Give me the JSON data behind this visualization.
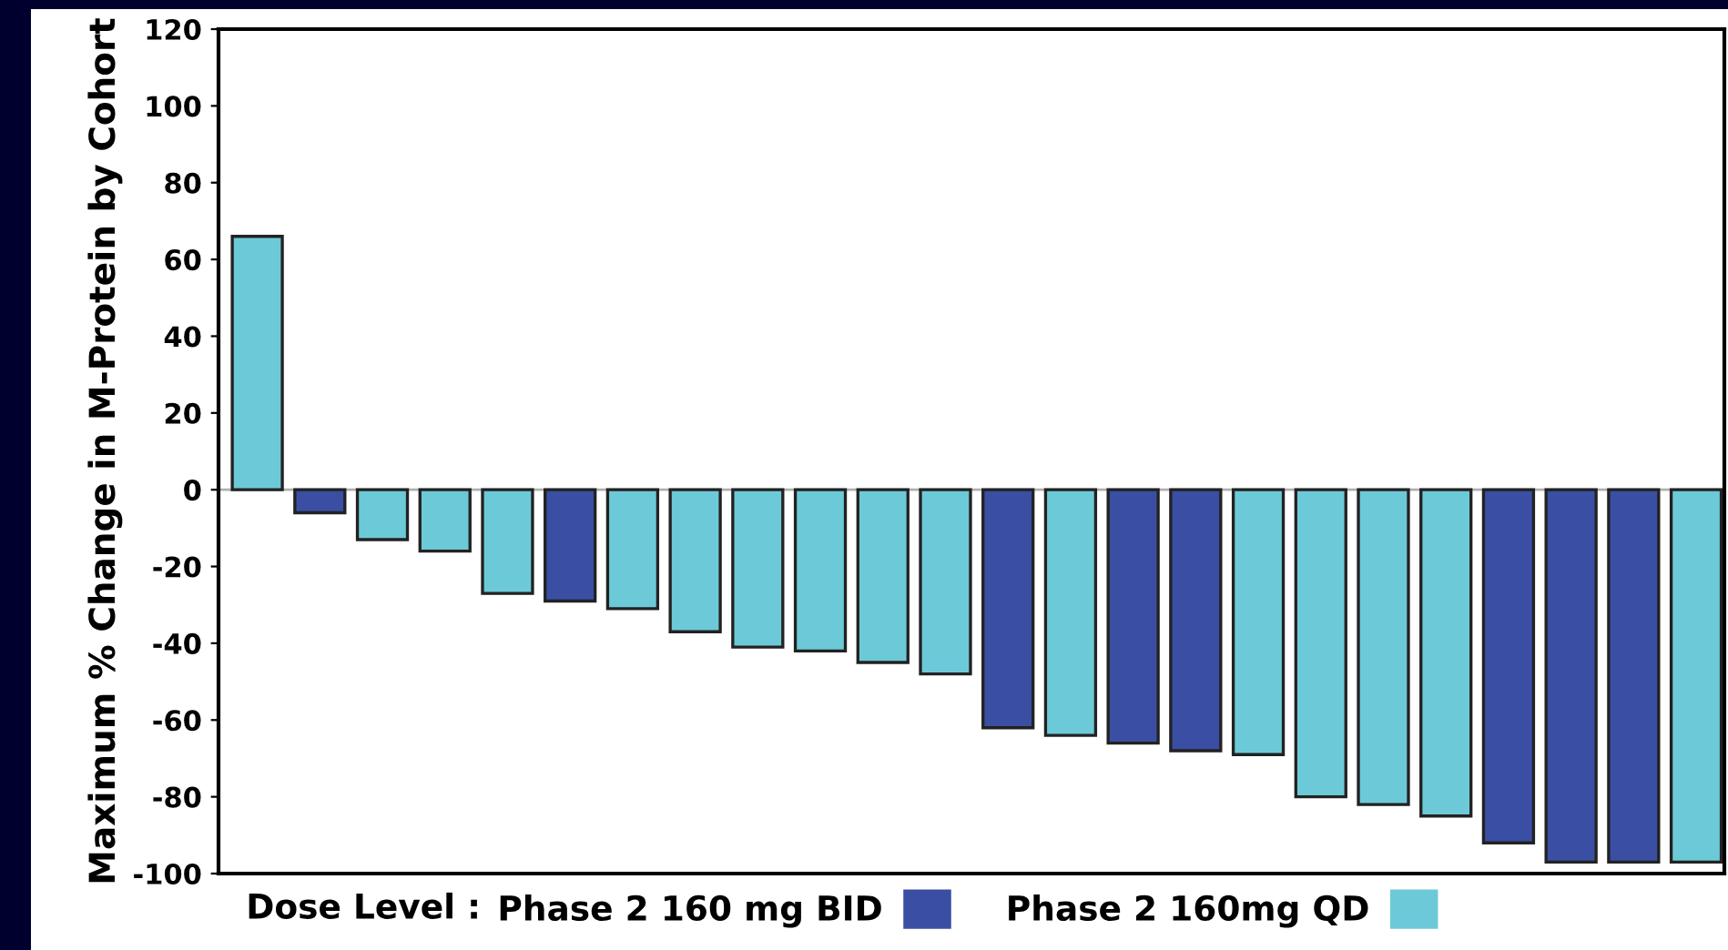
{
  "chart_data": {
    "type": "bar",
    "ylabel": "Maximum % Change in M-Protein by Cohort",
    "legend_title": "Dose Level :",
    "categories": [
      null,
      null,
      null,
      null,
      null,
      null,
      null,
      null,
      null,
      null,
      null,
      null,
      null,
      null,
      null,
      null,
      null,
      null,
      null,
      null,
      null,
      null,
      null,
      null
    ],
    "series": [
      {
        "name": "Phase 2 160 mg BID",
        "color": "#3a4fa3",
        "values": [
          null,
          -6,
          null,
          null,
          null,
          -29,
          null,
          null,
          null,
          null,
          null,
          null,
          -62,
          null,
          -66,
          -68,
          null,
          null,
          null,
          null,
          -92,
          -97,
          -97,
          null
        ]
      },
      {
        "name": "Phase 2 160mg QD",
        "color": "#6ccad8",
        "values": [
          66,
          null,
          -13,
          -16,
          -27,
          null,
          -31,
          -37,
          -41,
          -42,
          -45,
          -48,
          null,
          -64,
          null,
          null,
          -69,
          -80,
          -82,
          -85,
          null,
          null,
          null,
          -97
        ]
      }
    ],
    "ylim": [
      -100,
      120
    ],
    "yticks": [
      -100,
      -80,
      -60,
      -40,
      -20,
      0,
      20,
      40,
      60,
      80,
      100,
      120
    ],
    "ref_lines": [
      {
        "axis": "y",
        "value": 0,
        "color": "#b0b0b0"
      }
    ],
    "legend": "bottom",
    "grid": false
  }
}
